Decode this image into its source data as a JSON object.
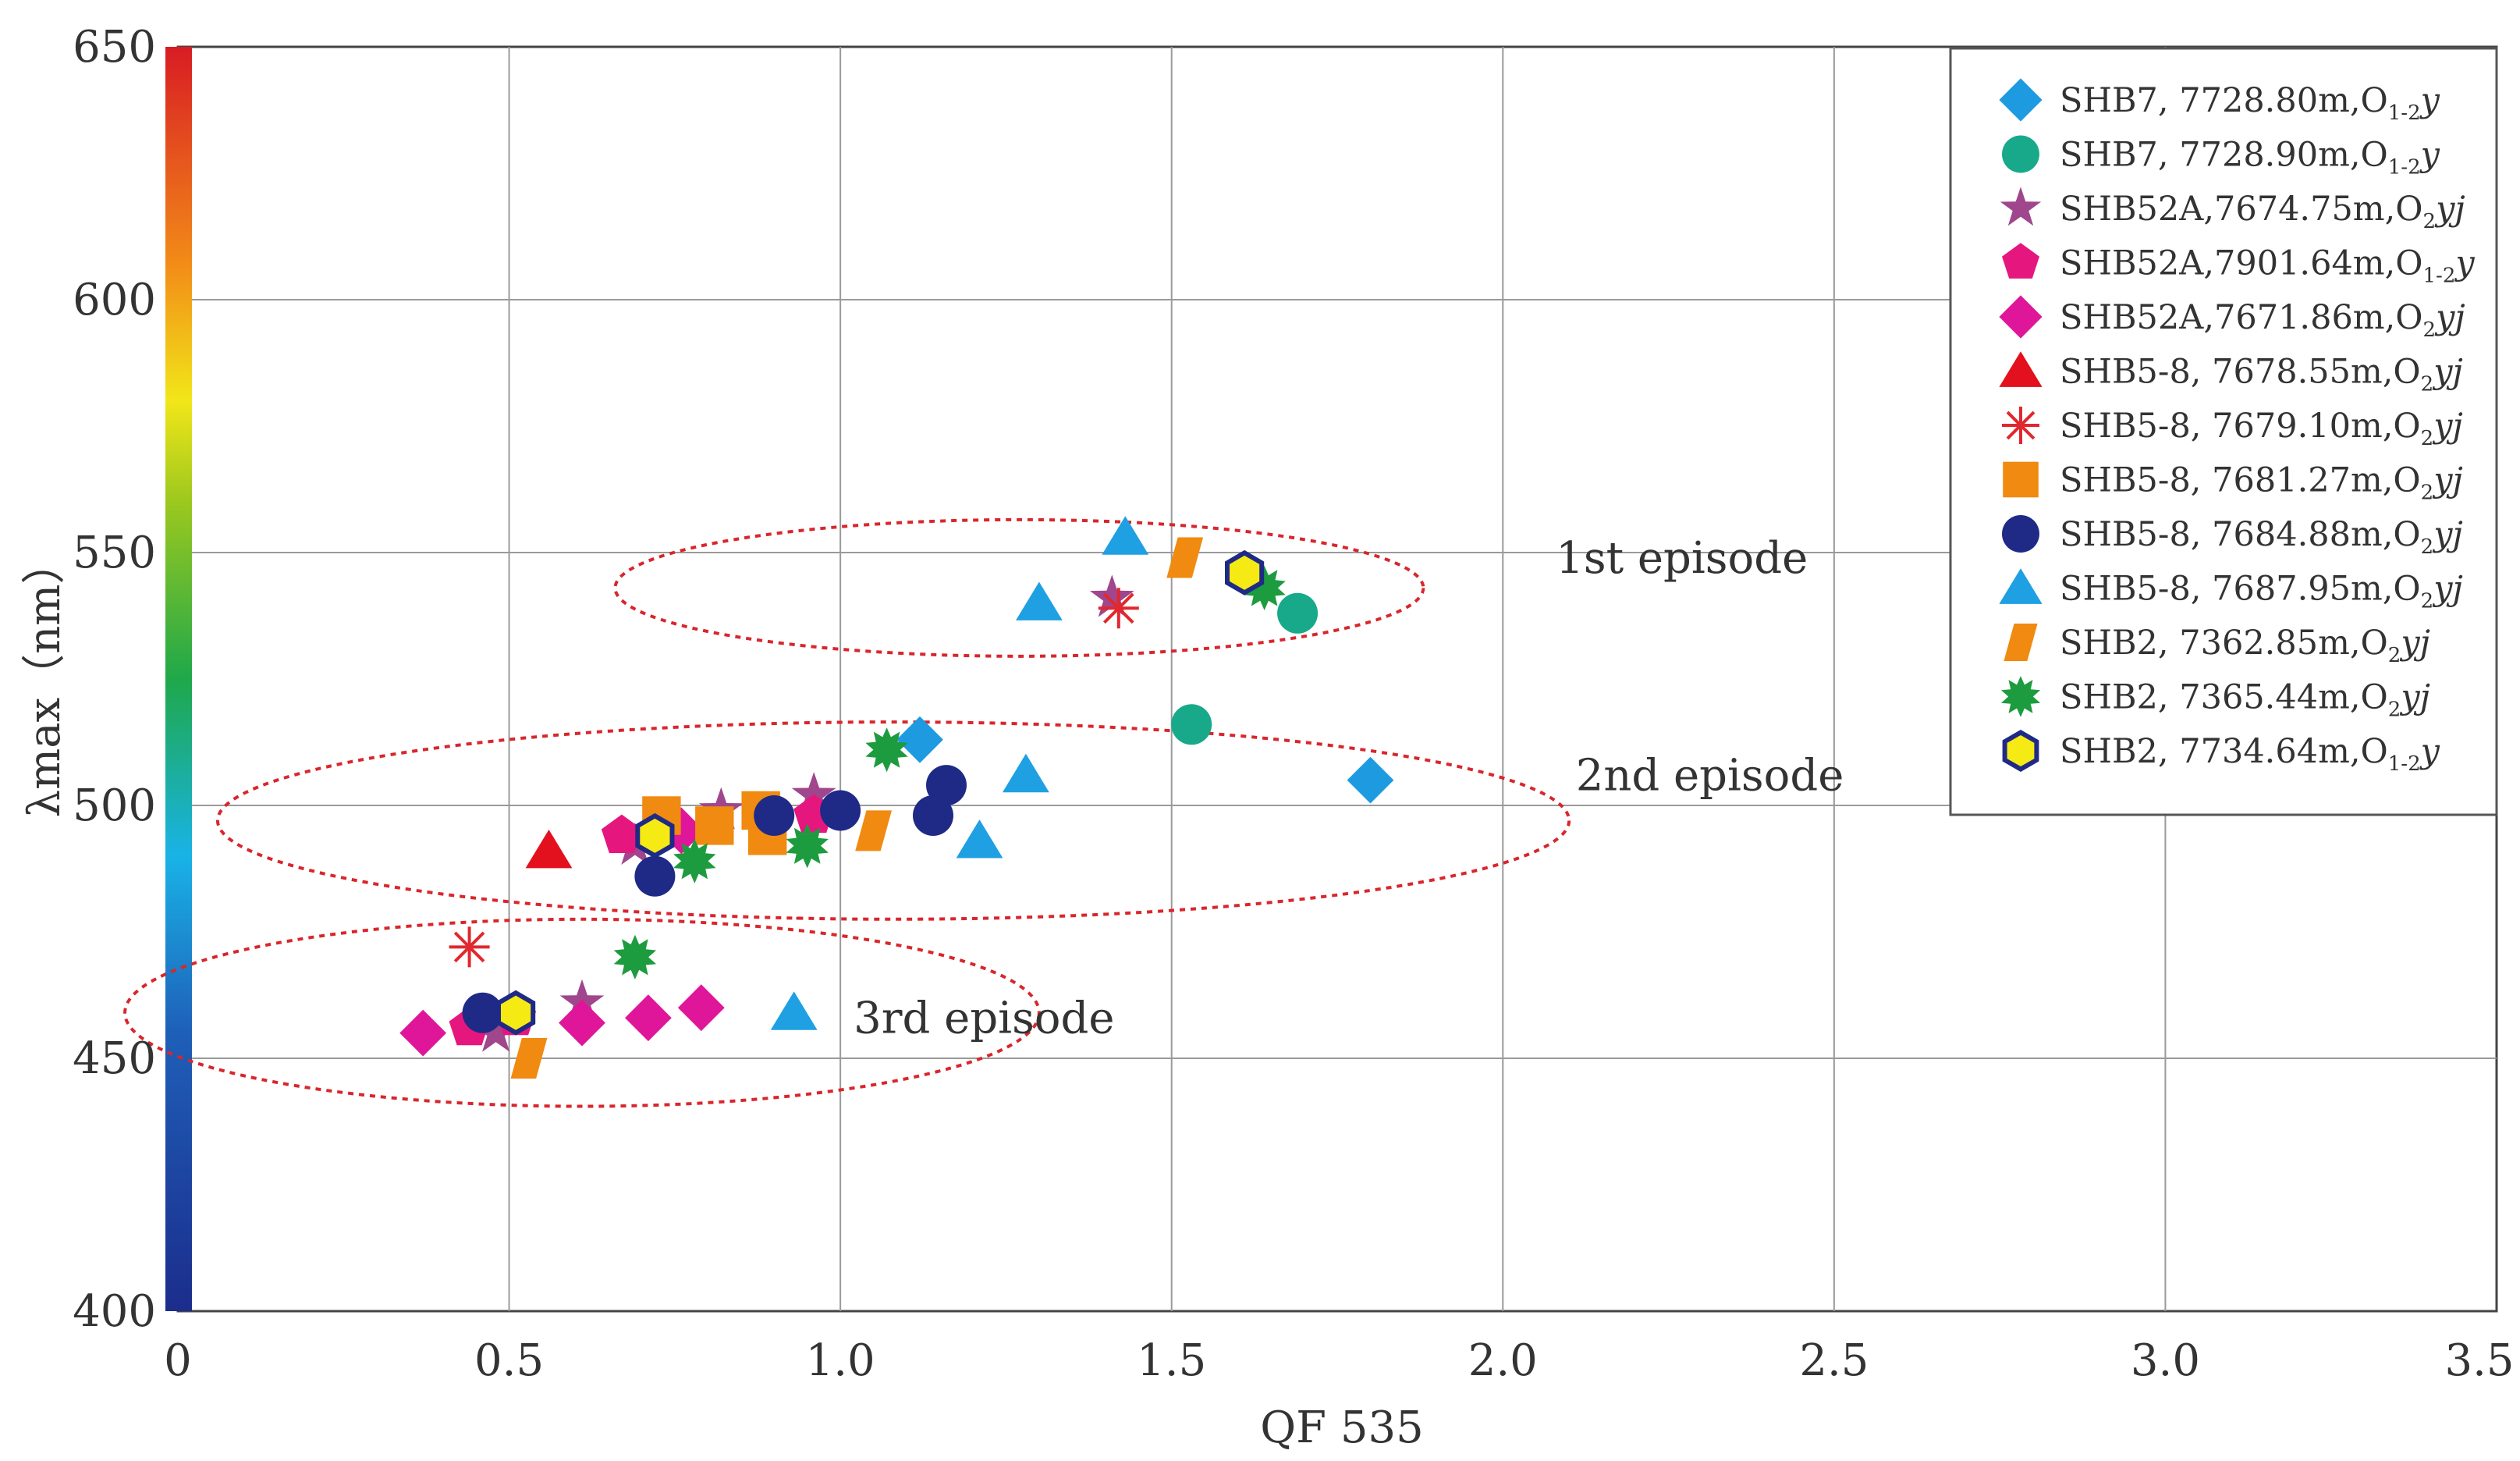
{
  "chart_data": {
    "type": "scatter",
    "title": "",
    "xlabel": "QF 535",
    "ylabel": "λmax（nm）",
    "xlim": [
      0,
      3.5
    ],
    "ylim": [
      400,
      650
    ],
    "x_ticks": [
      {
        "value": 0,
        "label": "0"
      },
      {
        "value": 0.5,
        "label": "0.5"
      },
      {
        "value": 1.0,
        "label": "1.0"
      },
      {
        "value": 1.5,
        "label": "1.5"
      },
      {
        "value": 2.0,
        "label": "2.0"
      },
      {
        "value": 2.5,
        "label": "2.5"
      },
      {
        "value": 3.0,
        "label": "3.0"
      },
      {
        "value": 3.5,
        "label": "3.5"
      }
    ],
    "y_ticks": [
      {
        "value": 400,
        "label": "400"
      },
      {
        "value": 450,
        "label": "450"
      },
      {
        "value": 500,
        "label": "500"
      },
      {
        "value": 550,
        "label": "550"
      },
      {
        "value": 600,
        "label": "600"
      },
      {
        "value": 650,
        "label": "650"
      }
    ],
    "grid": true,
    "legend_position": "top-right",
    "color_bar": "spectral (blue at 400 nm to red at 650 nm) along the y-axis",
    "series": [
      {
        "name": "SHB7, 7728.80m,O1-2y",
        "label_main": "SHB7, 7728.80m,O",
        "label_sub": "1-2",
        "label_tail": "y",
        "marker": "diamond",
        "color": "#1e9be0",
        "points": [
          [
            1.12,
            513
          ],
          [
            1.8,
            505
          ]
        ]
      },
      {
        "name": "SHB7, 7728.90m,O1-2y",
        "label_main": "SHB7, 7728.90m,O",
        "label_sub": "1-2",
        "label_tail": "y",
        "marker": "circle",
        "color": "#18a98a",
        "points": [
          [
            1.69,
            538
          ],
          [
            1.53,
            516
          ]
        ]
      },
      {
        "name": "SHB52A,7674.75m,O2yj",
        "label_main": "SHB52A,7674.75m,O",
        "label_sub": "2",
        "label_tail": "yj",
        "marker": "star5",
        "color": "#a0468c",
        "points": [
          [
            1.41,
            541
          ],
          [
            0.82,
            499
          ],
          [
            0.96,
            502
          ],
          [
            0.69,
            492
          ],
          [
            0.48,
            455
          ],
          [
            0.61,
            461
          ]
        ]
      },
      {
        "name": "SHB52A,7901.64m,O1-2y",
        "label_main": "SHB52A,7901.64m,O",
        "label_sub": "1-2",
        "label_tail": "y",
        "marker": "pentagon",
        "color": "#e5177f",
        "points": [
          [
            0.67,
            494
          ],
          [
            0.96,
            498
          ],
          [
            0.44,
            456
          ],
          [
            0.51,
            458
          ]
        ]
      },
      {
        "name": "SHB52A,7671.86m,O2yj",
        "label_main": "SHB52A,7671.86m,O",
        "label_sub": "2",
        "label_tail": "yj",
        "marker": "diamond",
        "color": "#e0169a",
        "points": [
          [
            0.37,
            455
          ],
          [
            0.61,
            457
          ],
          [
            0.71,
            458
          ],
          [
            0.79,
            460
          ],
          [
            0.76,
            495
          ]
        ]
      },
      {
        "name": "SHB5-8, 7678.55m,O2yj",
        "label_main": "SHB5-8, 7678.55m,O",
        "label_sub": "2",
        "label_tail": "yj",
        "marker": "triangle",
        "color": "#e3101e",
        "points": [
          [
            0.56,
            491
          ]
        ]
      },
      {
        "name": "SHB5-8, 7679.10m,O2yj",
        "label_main": "SHB5-8, 7679.10m,O",
        "label_sub": "2",
        "label_tail": "yj",
        "marker": "asterisk",
        "color": "#e0282e",
        "points": [
          [
            1.42,
            539
          ],
          [
            0.44,
            472
          ]
        ]
      },
      {
        "name": "SHB5-8, 7681.27m,O2yj",
        "label_main": "SHB5-8, 7681.27m,O",
        "label_sub": "2",
        "label_tail": "yj",
        "marker": "square",
        "color": "#f08a10",
        "points": [
          [
            0.73,
            498
          ],
          [
            0.81,
            496
          ],
          [
            0.88,
            499
          ],
          [
            0.89,
            494
          ]
        ]
      },
      {
        "name": "SHB5-8, 7684.88m,O2yj",
        "label_main": "SHB5-8, 7684.88m,O",
        "label_sub": "2",
        "label_tail": "yj",
        "marker": "circle",
        "color": "#1e2a86",
        "points": [
          [
            0.72,
            486
          ],
          [
            0.9,
            498
          ],
          [
            1.0,
            499
          ],
          [
            1.14,
            498
          ],
          [
            1.16,
            504
          ],
          [
            0.46,
            459
          ]
        ]
      },
      {
        "name": "SHB5-8, 7687.95m,O2yj",
        "label_main": "SHB5-8, 7687.95m,O",
        "label_sub": "2",
        "label_tail": "yj",
        "marker": "triangle",
        "color": "#1ea0e2",
        "points": [
          [
            1.43,
            553
          ],
          [
            1.3,
            540
          ],
          [
            1.28,
            506
          ],
          [
            1.21,
            493
          ],
          [
            0.93,
            459
          ]
        ]
      },
      {
        "name": "SHB2, 7362.85m,O2yj",
        "label_main": "SHB2, 7362.85m,O",
        "label_sub": "2",
        "label_tail": "yj",
        "marker": "parallelogram",
        "color": "#f08a10",
        "points": [
          [
            1.52,
            549
          ],
          [
            1.05,
            495
          ],
          [
            0.53,
            450
          ]
        ]
      },
      {
        "name": "SHB2, 7365.44m,O2yj",
        "label_main": "SHB2, 7365.44m,O",
        "label_sub": "2",
        "label_tail": "yj",
        "marker": "starburst",
        "color": "#1d9b3f",
        "points": [
          [
            1.64,
            543
          ],
          [
            1.07,
            511
          ],
          [
            0.95,
            492
          ],
          [
            0.78,
            489
          ],
          [
            0.69,
            470
          ]
        ]
      },
      {
        "name": "SHB2, 7734.64m,O1-2y",
        "label_main": "SHB2, 7734.64m,O",
        "label_sub": "1-2",
        "label_tail": "y",
        "marker": "hexagon",
        "color": "#f5ea14",
        "points": [
          [
            1.61,
            546
          ],
          [
            0.72,
            494
          ],
          [
            0.51,
            459
          ]
        ]
      }
    ],
    "annotations": [
      {
        "text": "1st episode",
        "x": 2.08,
        "y": 546,
        "ellipse": {
          "cx": 1.27,
          "cy": 543,
          "rx": 0.61,
          "ry": 13.5
        }
      },
      {
        "text": "2nd episode",
        "x": 2.11,
        "y": 503,
        "ellipse": {
          "cx": 1.08,
          "cy": 497,
          "rx": 1.02,
          "ry": 19.5
        }
      },
      {
        "text": "3rd episode",
        "x": 1.02,
        "y": 455,
        "ellipse": {
          "cx": 0.61,
          "cy": 459,
          "rx": 0.69,
          "ry": 18.5
        }
      }
    ]
  }
}
